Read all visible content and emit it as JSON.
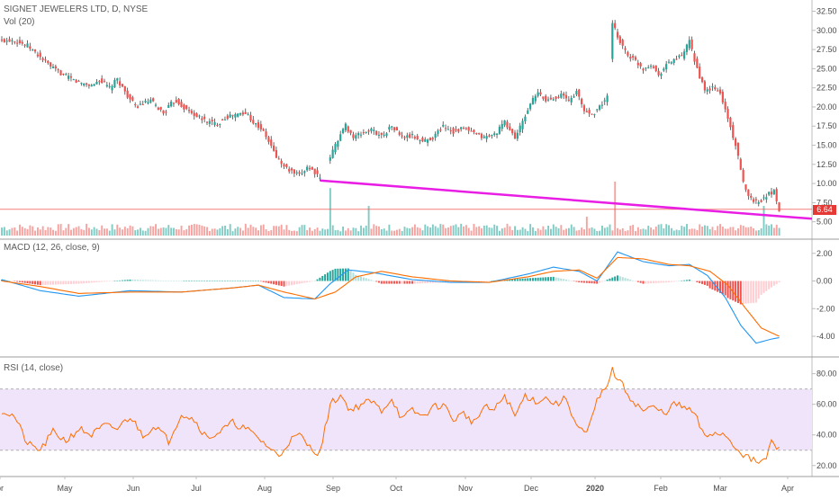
{
  "panes": {
    "price": {
      "title": "SIGNET JEWELERS LTD, D, NYSE",
      "volume_title": "Vol (20)"
    },
    "macd": {
      "title": "MACD (12, 26, close, 9)"
    },
    "rsi": {
      "title": "RSI (14, close)"
    }
  },
  "last_price": "6.64",
  "colors": {
    "up": "#26a69a",
    "down": "#ef5350",
    "wick": "#424242",
    "trendline": "#e91ee5",
    "hline": "#ef5350",
    "macd_line": "#2196f3",
    "signal_line": "#ff6d00",
    "rsi_line": "#ff6d00",
    "rsi_band": "#f0e4fb",
    "grid": "#cccccc"
  },
  "chart_data": [
    {
      "type": "candlestick",
      "title": "SIGNET JEWELERS LTD, D, NYSE",
      "x_ticks": [
        "pr",
        "May",
        "Jun",
        "Jul",
        "Aug",
        "Sep",
        "Oct",
        "Nov",
        "Dec",
        "2020",
        "Feb",
        "Mar",
        "Apr"
      ],
      "y_ticks": [
        "5.00",
        "7.50",
        "10.00",
        "12.50",
        "15.00",
        "17.50",
        "20.00",
        "22.50",
        "25.00",
        "27.50",
        "30.00",
        "32.50"
      ],
      "ylim": [
        3.2,
        33.5
      ],
      "close_path": [
        [
          0,
          28.6
        ],
        [
          4,
          28.8
        ],
        [
          10,
          28.0
        ],
        [
          15,
          26.5
        ],
        [
          20,
          25.0
        ],
        [
          25,
          24.0
        ],
        [
          30,
          23.2
        ],
        [
          35,
          22.8
        ],
        [
          38,
          23.5
        ],
        [
          42,
          22.5
        ],
        [
          45,
          23.6
        ],
        [
          48,
          22.0
        ],
        [
          50,
          21.0
        ],
        [
          52,
          20.0
        ],
        [
          55,
          20.4
        ],
        [
          58,
          20.8
        ],
        [
          61,
          19.8
        ],
        [
          63,
          19.2
        ],
        [
          66,
          20.4
        ],
        [
          68,
          20.8
        ],
        [
          72,
          19.6
        ],
        [
          75,
          19.0
        ],
        [
          78,
          18.4
        ],
        [
          81,
          18.0
        ],
        [
          84,
          17.8
        ],
        [
          87,
          18.6
        ],
        [
          90,
          18.9
        ],
        [
          93,
          19.1
        ],
        [
          96,
          19.0
        ],
        [
          98,
          18.0
        ],
        [
          101,
          17.2
        ],
        [
          104,
          15.5
        ],
        [
          107,
          13.5
        ],
        [
          110,
          12.2
        ],
        [
          113,
          11.5
        ],
        [
          116,
          11.0
        ],
        [
          119,
          12.2
        ],
        [
          122,
          11.5
        ],
        [
          124,
          10.5
        ],
        [
          128,
          13.5
        ],
        [
          131,
          15.8
        ],
        [
          134,
          17.6
        ],
        [
          137,
          16.0
        ],
        [
          140,
          16.5
        ],
        [
          144,
          17.0
        ],
        [
          148,
          16.2
        ],
        [
          152,
          17.5
        ],
        [
          156,
          16.0
        ],
        [
          160,
          16.2
        ],
        [
          164,
          15.5
        ],
        [
          168,
          16.0
        ],
        [
          172,
          17.5
        ],
        [
          176,
          16.8
        ],
        [
          180,
          17.2
        ],
        [
          184,
          16.5
        ],
        [
          188,
          16.0
        ],
        [
          192,
          16.4
        ],
        [
          196,
          18.0
        ],
        [
          200,
          16.0
        ],
        [
          203,
          18.0
        ],
        [
          206,
          20.5
        ],
        [
          209,
          21.8
        ],
        [
          212,
          20.8
        ],
        [
          215,
          21.2
        ],
        [
          218,
          21.6
        ],
        [
          221,
          20.8
        ],
        [
          224,
          22.0
        ],
        [
          227,
          19.5
        ],
        [
          230,
          19.0
        ],
        [
          233,
          20.0
        ],
        [
          236,
          21.3
        ],
        [
          238,
          30.8
        ],
        [
          241,
          28.5
        ],
        [
          244,
          26.8
        ],
        [
          247,
          26.0
        ],
        [
          250,
          25.0
        ],
        [
          253,
          25.6
        ],
        [
          256,
          24.2
        ],
        [
          259,
          25.5
        ],
        [
          262,
          26.2
        ],
        [
          265,
          26.6
        ],
        [
          268,
          28.5
        ],
        [
          271,
          25.0
        ],
        [
          274,
          22.0
        ],
        [
          277,
          22.5
        ],
        [
          280,
          21.8
        ],
        [
          283,
          18.5
        ],
        [
          286,
          15.0
        ],
        [
          289,
          10.0
        ],
        [
          292,
          8.0
        ],
        [
          295,
          7.5
        ],
        [
          298,
          8.5
        ],
        [
          301,
          9.0
        ],
        [
          303,
          6.64
        ]
      ]
    },
    {
      "type": "bar",
      "title": "Vol (20)",
      "spikes": [
        [
          128,
          0.88
        ],
        [
          143,
          0.55
        ],
        [
          228,
          0.35
        ],
        [
          239,
          1.0
        ],
        [
          297,
          0.55
        ]
      ],
      "ylim": [
        0,
        1
      ]
    },
    {
      "type": "line",
      "title": "MACD (12, 26, close, 9)",
      "y_ticks": [
        "-4.00",
        "-2.00",
        "0.00",
        "2.00"
      ],
      "ylim": [
        -5.3,
        2.7
      ],
      "series": [
        {
          "key": "macd",
          "points": [
            [
              0,
              0.1
            ],
            [
              15,
              -0.7
            ],
            [
              30,
              -1.1
            ],
            [
              50,
              -0.7
            ],
            [
              70,
              -0.8
            ],
            [
              90,
              -0.5
            ],
            [
              100,
              -0.3
            ],
            [
              110,
              -1.2
            ],
            [
              122,
              -1.3
            ],
            [
              128,
              -0.2
            ],
            [
              135,
              0.8
            ],
            [
              145,
              0.6
            ],
            [
              160,
              0.1
            ],
            [
              175,
              -0.1
            ],
            [
              190,
              -0.1
            ],
            [
              205,
              0.5
            ],
            [
              215,
              1.0
            ],
            [
              225,
              0.7
            ],
            [
              232,
              0.0
            ],
            [
              240,
              2.1
            ],
            [
              250,
              1.4
            ],
            [
              260,
              1.1
            ],
            [
              268,
              1.2
            ],
            [
              275,
              0.4
            ],
            [
              282,
              -1.2
            ],
            [
              288,
              -3.2
            ],
            [
              294,
              -4.5
            ],
            [
              300,
              -4.2
            ],
            [
              303,
              -4.1
            ]
          ]
        },
        {
          "key": "signal",
          "points": [
            [
              0,
              0.0
            ],
            [
              15,
              -0.4
            ],
            [
              30,
              -0.9
            ],
            [
              50,
              -0.8
            ],
            [
              70,
              -0.8
            ],
            [
              90,
              -0.5
            ],
            [
              100,
              -0.3
            ],
            [
              110,
              -0.8
            ],
            [
              122,
              -1.3
            ],
            [
              130,
              -0.8
            ],
            [
              138,
              0.3
            ],
            [
              148,
              0.7
            ],
            [
              160,
              0.3
            ],
            [
              175,
              0.0
            ],
            [
              190,
              -0.1
            ],
            [
              205,
              0.3
            ],
            [
              215,
              0.7
            ],
            [
              225,
              0.8
            ],
            [
              232,
              0.2
            ],
            [
              240,
              1.7
            ],
            [
              250,
              1.6
            ],
            [
              260,
              1.2
            ],
            [
              268,
              1.1
            ],
            [
              276,
              0.7
            ],
            [
              283,
              -0.3
            ],
            [
              290,
              -2.0
            ],
            [
              296,
              -3.4
            ],
            [
              303,
              -4.0
            ]
          ]
        }
      ]
    },
    {
      "type": "line",
      "title": "RSI (14, close)",
      "y_ticks": [
        "20.00",
        "40.00",
        "60.00",
        "80.00"
      ],
      "band": [
        30,
        70
      ],
      "ylim": [
        14,
        88
      ],
      "points": [
        [
          0,
          56
        ],
        [
          5,
          52
        ],
        [
          10,
          34
        ],
        [
          15,
          30
        ],
        [
          20,
          42
        ],
        [
          25,
          36
        ],
        [
          30,
          44
        ],
        [
          35,
          40
        ],
        [
          40,
          46
        ],
        [
          45,
          44
        ],
        [
          50,
          52
        ],
        [
          55,
          40
        ],
        [
          60,
          46
        ],
        [
          65,
          36
        ],
        [
          70,
          54
        ],
        [
          75,
          50
        ],
        [
          80,
          38
        ],
        [
          85,
          42
        ],
        [
          90,
          48
        ],
        [
          95,
          44
        ],
        [
          100,
          38
        ],
        [
          104,
          32
        ],
        [
          108,
          26
        ],
        [
          112,
          36
        ],
        [
          116,
          40
        ],
        [
          120,
          32
        ],
        [
          124,
          28
        ],
        [
          128,
          60
        ],
        [
          132,
          66
        ],
        [
          136,
          56
        ],
        [
          140,
          60
        ],
        [
          144,
          62
        ],
        [
          148,
          56
        ],
        [
          152,
          64
        ],
        [
          156,
          50
        ],
        [
          160,
          56
        ],
        [
          164,
          52
        ],
        [
          168,
          58
        ],
        [
          172,
          60
        ],
        [
          176,
          50
        ],
        [
          180,
          54
        ],
        [
          184,
          48
        ],
        [
          188,
          58
        ],
        [
          192,
          56
        ],
        [
          196,
          66
        ],
        [
          200,
          52
        ],
        [
          204,
          66
        ],
        [
          208,
          62
        ],
        [
          212,
          64
        ],
        [
          216,
          60
        ],
        [
          220,
          64
        ],
        [
          224,
          46
        ],
        [
          228,
          40
        ],
        [
          232,
          62
        ],
        [
          235,
          70
        ],
        [
          238,
          82
        ],
        [
          242,
          72
        ],
        [
          246,
          62
        ],
        [
          250,
          56
        ],
        [
          254,
          58
        ],
        [
          258,
          54
        ],
        [
          262,
          60
        ],
        [
          266,
          58
        ],
        [
          270,
          54
        ],
        [
          274,
          38
        ],
        [
          278,
          42
        ],
        [
          282,
          40
        ],
        [
          286,
          32
        ],
        [
          290,
          26
        ],
        [
          294,
          22
        ],
        [
          298,
          24
        ],
        [
          300,
          36
        ],
        [
          303,
          30
        ]
      ]
    }
  ]
}
